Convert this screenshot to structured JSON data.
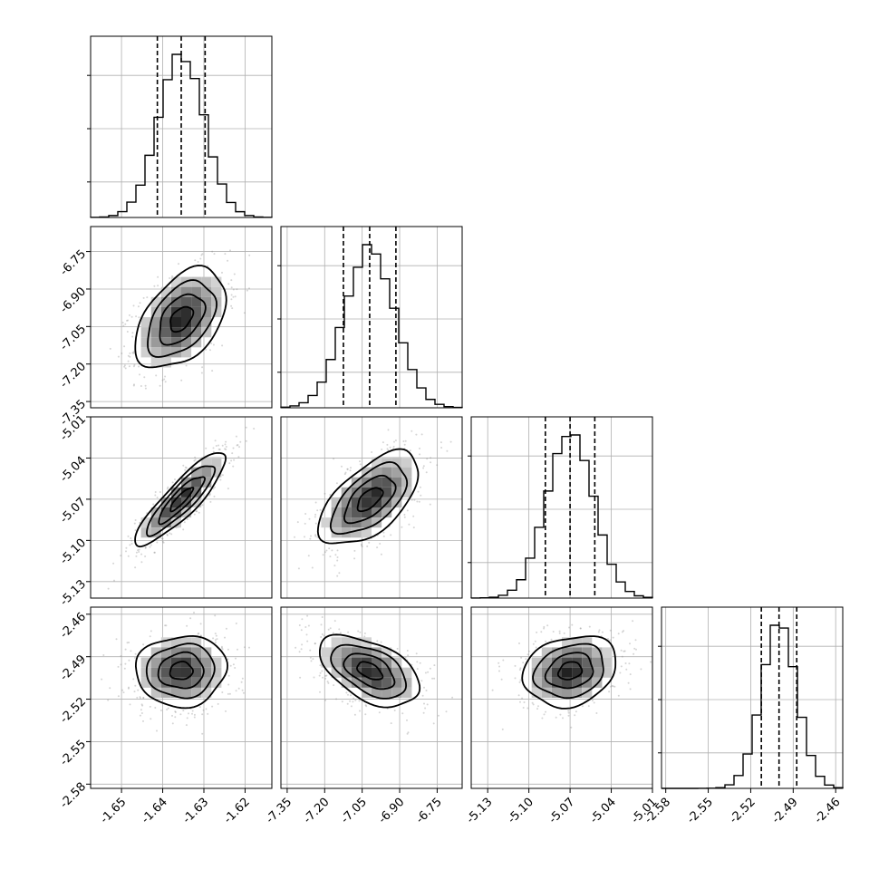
{
  "chart_data": {
    "type": "corner",
    "grid": true,
    "params": [
      {
        "mean": -1.6355,
        "sd": 0.0055,
        "ticks": [
          "-1.65",
          "-1.64",
          "-1.63",
          "-1.62"
        ],
        "tick_values": [
          -1.65,
          -1.64,
          -1.63,
          -1.62
        ],
        "range": [
          -1.6575,
          -1.6135
        ]
      },
      {
        "mean": -7.02,
        "sd": 0.1,
        "ticks": [
          "-7.35",
          "-7.20",
          "-7.05",
          "-6.90",
          "-6.75"
        ],
        "tick_values": [
          -7.35,
          -7.2,
          -7.05,
          -6.9,
          -6.75
        ],
        "range": [
          -7.375,
          -6.65
        ]
      },
      {
        "mean": -5.07,
        "sd": 0.017,
        "ticks": [
          "-5.13",
          "-5.10",
          "-5.07",
          "-5.04",
          "-5.01"
        ],
        "tick_values": [
          -5.13,
          -5.1,
          -5.07,
          -5.04,
          -5.01
        ],
        "range": [
          -5.142,
          -5.01
        ]
      },
      {
        "mean": -2.5,
        "sd": 0.0125,
        "ticks": [
          "-2.58",
          "-2.55",
          "-2.52",
          "-2.49",
          "-2.46"
        ],
        "tick_values": [
          -2.58,
          -2.55,
          -2.52,
          -2.49,
          -2.46
        ],
        "range": [
          -2.583,
          -2.455
        ]
      }
    ],
    "diag_quantiles": [
      [
        -1.6413,
        -1.6355,
        -1.6297
      ],
      [
        -7.125,
        -7.02,
        -6.915
      ],
      [
        -5.088,
        -5.07,
        -5.052
      ],
      [
        -2.5125,
        -2.5,
        -2.4875
      ]
    ],
    "correlations": [
      {
        "row": 1,
        "col": 0,
        "rho": 0.45
      },
      {
        "row": 2,
        "col": 0,
        "rho": 0.88
      },
      {
        "row": 2,
        "col": 1,
        "rho": 0.6
      },
      {
        "row": 3,
        "col": 0,
        "rho": 0.05
      },
      {
        "row": 3,
        "col": 1,
        "rho": -0.5
      },
      {
        "row": 3,
        "col": 2,
        "rho": 0.2
      }
    ],
    "contour_levels_sigma": [
      0.5,
      1.0,
      1.5,
      2.0
    ],
    "quantile_line_style": "dashed",
    "scatter_color": "#888888",
    "density_color": "#000000"
  }
}
